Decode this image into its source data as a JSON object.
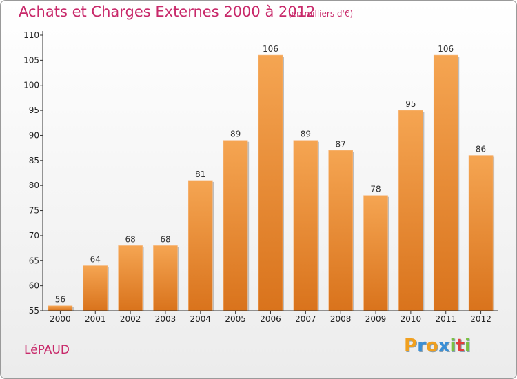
{
  "header": {
    "title": "Achats et Charges Externes 2000 à 2012",
    "subtitle": "(en milliers d'€)"
  },
  "footer": {
    "town": "LéPAUD",
    "logo": [
      "P",
      "r",
      "o",
      "x",
      "i",
      "t",
      "i"
    ]
  },
  "colors": {
    "title": "#c8296a",
    "bar_light": "#f5a552",
    "bar_dark": "#d9731c",
    "axis": "#333333"
  },
  "chart_data": {
    "type": "bar",
    "title": "Achats et Charges Externes 2000 à 2012",
    "subtitle": "(en milliers d'€)",
    "xlabel": "",
    "ylabel": "",
    "categories": [
      "2000",
      "2001",
      "2002",
      "2003",
      "2004",
      "2005",
      "2006",
      "2007",
      "2008",
      "2009",
      "2010",
      "2011",
      "2012"
    ],
    "values": [
      56,
      64,
      68,
      68,
      81,
      89,
      106,
      89,
      87,
      78,
      95,
      106,
      86
    ],
    "ylim": [
      55,
      110
    ],
    "yticks": [
      55,
      60,
      65,
      70,
      75,
      80,
      85,
      90,
      95,
      100,
      105,
      110
    ],
    "grid": false,
    "data_labels": true
  }
}
